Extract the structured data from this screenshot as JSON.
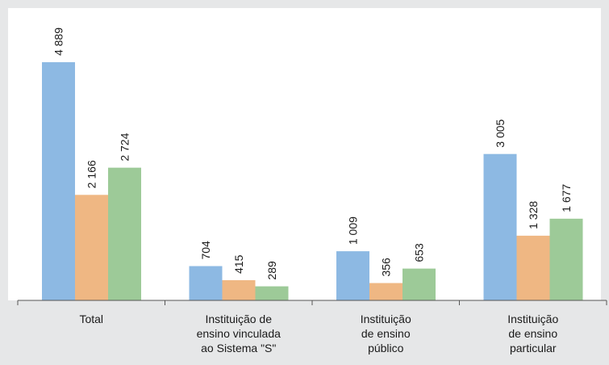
{
  "chart_data": {
    "type": "bar",
    "categories": [
      [
        "Total"
      ],
      [
        "Instituição de",
        "ensino vinculada",
        "ao Sistema \"S\""
      ],
      [
        "Instituição",
        "de ensino",
        "público"
      ],
      [
        "Instituição",
        "de ensino",
        "particular"
      ]
    ],
    "series": [
      {
        "color": "#8db9e3",
        "values": [
          4889,
          704,
          1009,
          3005
        ],
        "value_labels": [
          "4 889",
          "704",
          "1 009",
          "3 005"
        ]
      },
      {
        "color": "#efb783",
        "values": [
          2166,
          415,
          356,
          1328
        ],
        "value_labels": [
          "2 166",
          "415",
          "356",
          "1 328"
        ]
      },
      {
        "color": "#9dca98",
        "values": [
          2724,
          289,
          653,
          1677
        ],
        "value_labels": [
          "2 724",
          "289",
          "653",
          "1 677"
        ]
      }
    ],
    "ylim": [
      0,
      6000
    ]
  }
}
